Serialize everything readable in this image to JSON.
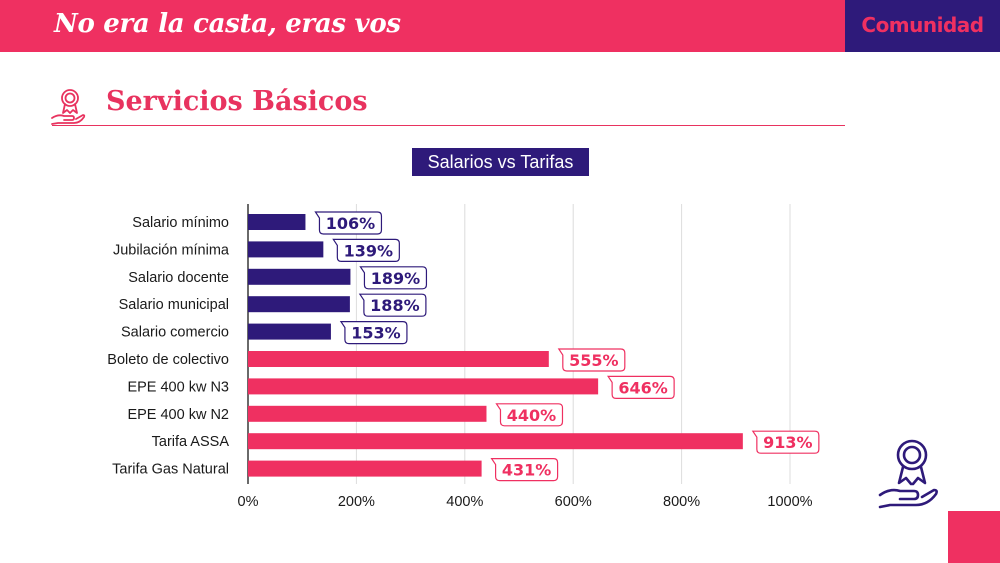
{
  "header": {
    "title": "No era la casta, eras vos",
    "brand": "Comunidad",
    "accent_color": "#ef3061",
    "brand_bg_color": "#2e1a7a"
  },
  "section": {
    "title": "Servicios Básicos",
    "icon": "award-hand-icon"
  },
  "chart_data": {
    "type": "bar",
    "orientation": "horizontal",
    "title": "Salarios vs Tarifas",
    "categories": [
      "Salario mínimo",
      "Jubilación mínima",
      "Salario docente",
      "Salario municipal",
      "Salario comercio",
      "Boleto de colectivo",
      "EPE 400 kw N3",
      "EPE 400 kw N2",
      "Tarifa ASSA",
      "Tarifa Gas Natural"
    ],
    "values": [
      106,
      139,
      189,
      188,
      153,
      555,
      646,
      440,
      913,
      431
    ],
    "value_labels": [
      "106%",
      "139%",
      "189%",
      "188%",
      "153%",
      "555%",
      "646%",
      "440%",
      "913%",
      "431%"
    ],
    "groups": [
      "salarios",
      "salarios",
      "salarios",
      "salarios",
      "salarios",
      "tarifas",
      "tarifas",
      "tarifas",
      "tarifas",
      "tarifas"
    ],
    "colors": {
      "salarios": "#2e1a7a",
      "tarifas": "#ef3061"
    },
    "xlim": [
      0,
      1000
    ],
    "xticks": [
      0,
      200,
      400,
      600,
      800,
      1000
    ],
    "xtick_labels": [
      "0%",
      "200%",
      "400%",
      "600%",
      "800%",
      "1000%"
    ],
    "grid": true,
    "xlabel": "",
    "ylabel": ""
  }
}
